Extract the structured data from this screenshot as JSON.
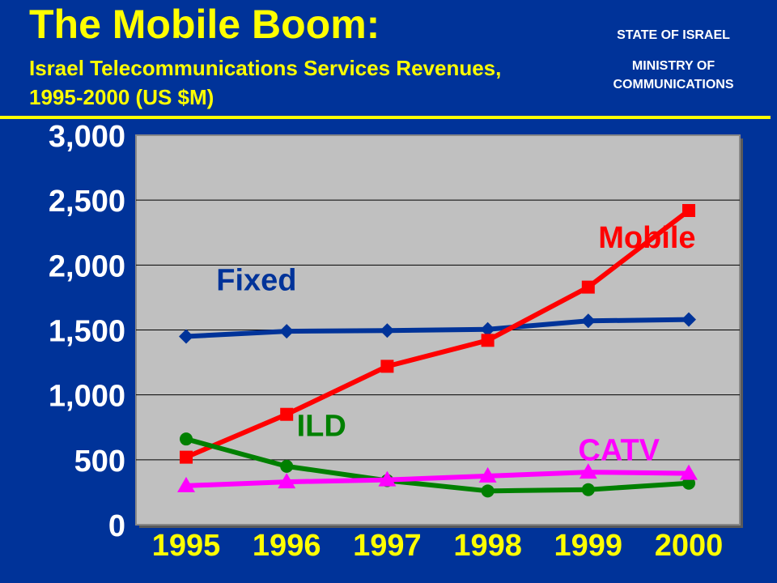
{
  "header": {
    "title": "The Mobile Boom:",
    "subtitle": "Israel Telecommunications Services Revenues, 1995-2000 (US $M)",
    "org_line_1": "STATE OF ISRAEL",
    "org_line_2": "MINISTRY OF COMMUNICATIONS"
  },
  "colors": {
    "background": "#003399",
    "title": "#FFFF00",
    "plot_area": "#C0C0C0",
    "fixed": "#003399",
    "mobile": "#FF0000",
    "ild": "#008000",
    "catv": "#FF00FF"
  },
  "chart_data": {
    "type": "line",
    "title": "",
    "xlabel": "",
    "ylabel": "",
    "categories": [
      "1995",
      "1996",
      "1997",
      "1998",
      "1999",
      "2000"
    ],
    "ylim": [
      0,
      3000
    ],
    "yticks": [
      0,
      500,
      1000,
      1500,
      2000,
      2500,
      3000
    ],
    "ytick_labels": [
      "0",
      "500",
      "1,000",
      "1,500",
      "2,000",
      "2,500",
      "3,000"
    ],
    "grid": true,
    "legend": "inline labels",
    "series": [
      {
        "name": "Fixed",
        "marker": "diamond",
        "color": "#003399",
        "values": [
          1450,
          1490,
          1495,
          1505,
          1570,
          1580
        ]
      },
      {
        "name": "Mobile",
        "marker": "square",
        "color": "#FF0000",
        "values": [
          520,
          850,
          1220,
          1420,
          1830,
          2420
        ]
      },
      {
        "name": "ILD",
        "marker": "circle",
        "color": "#008000",
        "values": [
          660,
          450,
          340,
          260,
          270,
          320
        ]
      },
      {
        "name": "CATV",
        "marker": "triangle",
        "color": "#FF00FF",
        "values": [
          300,
          330,
          345,
          375,
          405,
          395
        ]
      }
    ]
  }
}
